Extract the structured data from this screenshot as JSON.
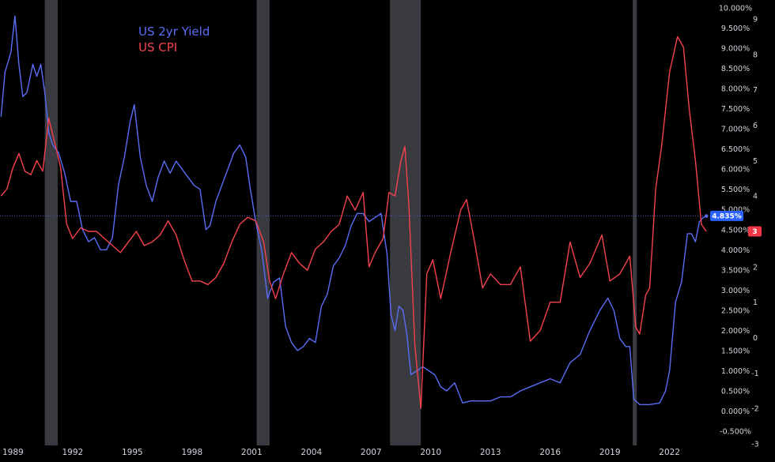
{
  "colors": {
    "background": "#000000",
    "yield": "#5b6cf5",
    "cpi": "#f5424e",
    "recession": "#3a3b40",
    "axis_text": "#d1d4dc"
  },
  "legend": {
    "yield_label": "US 2yr Yield",
    "cpi_label": "US CPI"
  },
  "badges": {
    "yield_value": "4.835%",
    "cpi_value": "3"
  },
  "chart_data": {
    "type": "line",
    "x_ticks": [
      "1989",
      "1992",
      "1995",
      "1998",
      "2001",
      "2004",
      "2007",
      "2010",
      "2013",
      "2016",
      "2019",
      "2022"
    ],
    "x_range": [
      1988.35,
      2024.0
    ],
    "recessions": [
      [
        1990.6,
        1991.25
      ],
      [
        2001.25,
        2001.9
      ],
      [
        2007.95,
        2009.5
      ],
      [
        2020.15,
        2020.35
      ]
    ],
    "y_left_ticks": [
      "10.000%",
      "9.500%",
      "9.000%",
      "8.500%",
      "8.000%",
      "7.500%",
      "7.000%",
      "6.500%",
      "6.000%",
      "5.500%",
      "5.000%",
      "4.500%",
      "4.000%",
      "3.500%",
      "3.000%",
      "2.500%",
      "2.000%",
      "1.500%",
      "1.000%",
      "0.500%",
      "0.000%",
      "-0.500%"
    ],
    "y_left_range": [
      -0.5,
      10.0
    ],
    "y_right_ticks": [
      "9",
      "8",
      "7",
      "6",
      "5",
      "4",
      "3",
      "2",
      "1",
      "0",
      "-1",
      "-2",
      "-3"
    ],
    "y_right_range": [
      -3,
      9
    ],
    "series": [
      {
        "name": "US 2yr Yield",
        "axis": "left",
        "x": [
          1988.4,
          1988.6,
          1988.9,
          1989.1,
          1989.3,
          1989.5,
          1989.7,
          1990.0,
          1990.2,
          1990.4,
          1990.6,
          1990.8,
          1991.0,
          1991.3,
          1991.6,
          1991.9,
          1992.2,
          1992.5,
          1992.8,
          1993.1,
          1993.4,
          1993.7,
          1994.0,
          1994.3,
          1994.6,
          1994.9,
          1995.1,
          1995.4,
          1995.7,
          1996.0,
          1996.3,
          1996.6,
          1996.9,
          1997.2,
          1997.5,
          1997.8,
          1998.1,
          1998.4,
          1998.7,
          1998.9,
          1999.2,
          1999.5,
          1999.8,
          2000.1,
          2000.4,
          2000.7,
          2000.9,
          2001.2,
          2001.5,
          2001.8,
          2002.1,
          2002.4,
          2002.7,
          2003.0,
          2003.3,
          2003.6,
          2003.9,
          2004.2,
          2004.5,
          2004.8,
          2005.1,
          2005.4,
          2005.7,
          2006.0,
          2006.3,
          2006.6,
          2006.9,
          2007.2,
          2007.5,
          2007.8,
          2008.0,
          2008.2,
          2008.4,
          2008.6,
          2008.8,
          2009.0,
          2009.3,
          2009.6,
          2009.9,
          2010.2,
          2010.5,
          2010.8,
          2011.2,
          2011.6,
          2012.0,
          2012.5,
          2013.0,
          2013.5,
          2014.0,
          2014.5,
          2015.0,
          2015.5,
          2016.0,
          2016.5,
          2017.0,
          2017.5,
          2018.0,
          2018.5,
          2018.9,
          2019.2,
          2019.5,
          2019.8,
          2020.0,
          2020.2,
          2020.5,
          2021.0,
          2021.5,
          2021.8,
          2022.0,
          2022.3,
          2022.6,
          2022.9,
          2023.1,
          2023.3,
          2023.5,
          2023.7,
          2023.85
        ],
        "y": [
          7.3,
          8.4,
          8.9,
          9.8,
          8.6,
          7.8,
          7.9,
          8.6,
          8.3,
          8.6,
          7.9,
          6.9,
          6.6,
          6.4,
          5.9,
          5.2,
          5.2,
          4.5,
          4.2,
          4.3,
          4.0,
          4.0,
          4.3,
          5.6,
          6.3,
          7.2,
          7.6,
          6.3,
          5.6,
          5.2,
          5.8,
          6.2,
          5.9,
          6.2,
          6.0,
          5.8,
          5.6,
          5.5,
          4.5,
          4.6,
          5.2,
          5.6,
          6.0,
          6.4,
          6.6,
          6.3,
          5.6,
          4.7,
          4.0,
          2.8,
          3.2,
          3.3,
          2.1,
          1.7,
          1.5,
          1.6,
          1.8,
          1.7,
          2.6,
          2.9,
          3.6,
          3.8,
          4.1,
          4.6,
          4.9,
          4.9,
          4.7,
          4.8,
          4.9,
          3.9,
          2.4,
          2.0,
          2.6,
          2.5,
          1.9,
          0.9,
          1.0,
          1.1,
          1.0,
          0.9,
          0.6,
          0.5,
          0.7,
          0.2,
          0.25,
          0.25,
          0.25,
          0.35,
          0.35,
          0.5,
          0.6,
          0.7,
          0.8,
          0.7,
          1.2,
          1.4,
          2.0,
          2.5,
          2.8,
          2.5,
          1.8,
          1.6,
          1.6,
          0.3,
          0.16,
          0.16,
          0.2,
          0.5,
          1.0,
          2.7,
          3.2,
          4.4,
          4.4,
          4.2,
          4.7,
          4.8,
          4.84
        ]
      },
      {
        "name": "US CPI",
        "axis": "right",
        "x": [
          1988.4,
          1988.7,
          1989.0,
          1989.3,
          1989.6,
          1989.9,
          1990.2,
          1990.5,
          1990.8,
          1991.1,
          1991.4,
          1991.7,
          1992.0,
          1992.4,
          1992.8,
          1993.2,
          1993.6,
          1994.0,
          1994.4,
          1994.8,
          1995.2,
          1995.6,
          1996.0,
          1996.4,
          1996.8,
          1997.2,
          1997.6,
          1998.0,
          1998.4,
          1998.8,
          1999.2,
          1999.6,
          2000.0,
          2000.4,
          2000.8,
          2001.2,
          2001.6,
          2001.9,
          2002.2,
          2002.6,
          2003.0,
          2003.4,
          2003.8,
          2004.2,
          2004.6,
          2005.0,
          2005.4,
          2005.8,
          2006.2,
          2006.6,
          2006.9,
          2007.2,
          2007.6,
          2007.9,
          2008.2,
          2008.5,
          2008.7,
          2008.9,
          2009.2,
          2009.5,
          2009.8,
          2010.1,
          2010.5,
          2011.0,
          2011.5,
          2011.8,
          2012.2,
          2012.6,
          2013.0,
          2013.5,
          2014.0,
          2014.5,
          2015.0,
          2015.5,
          2016.0,
          2016.5,
          2017.0,
          2017.5,
          2018.0,
          2018.6,
          2019.0,
          2019.5,
          2020.0,
          2020.3,
          2020.5,
          2020.8,
          2021.0,
          2021.3,
          2021.6,
          2022.0,
          2022.4,
          2022.7,
          2023.0,
          2023.3,
          2023.6,
          2023.85
        ],
        "y": [
          4.0,
          4.2,
          4.8,
          5.2,
          4.7,
          4.6,
          5.0,
          4.7,
          6.2,
          5.5,
          4.8,
          3.2,
          2.8,
          3.1,
          3.0,
          3.0,
          2.8,
          2.6,
          2.4,
          2.7,
          3.0,
          2.6,
          2.7,
          2.9,
          3.3,
          2.9,
          2.2,
          1.6,
          1.6,
          1.5,
          1.7,
          2.1,
          2.7,
          3.2,
          3.4,
          3.3,
          2.7,
          1.6,
          1.1,
          1.8,
          2.4,
          2.1,
          1.9,
          2.5,
          2.7,
          3.0,
          3.2,
          4.0,
          3.6,
          4.1,
          2.0,
          2.4,
          2.8,
          4.1,
          4.0,
          5.0,
          5.4,
          3.7,
          -0.2,
          -2.0,
          1.8,
          2.2,
          1.1,
          2.4,
          3.6,
          3.9,
          2.7,
          1.4,
          1.8,
          1.5,
          1.5,
          2.0,
          -0.1,
          0.2,
          1.0,
          1.0,
          2.7,
          1.7,
          2.1,
          2.9,
          1.6,
          1.8,
          2.3,
          0.3,
          0.1,
          1.2,
          1.4,
          4.2,
          5.4,
          7.5,
          8.5,
          8.2,
          6.4,
          5.0,
          3.2,
          3.0
        ]
      }
    ]
  }
}
